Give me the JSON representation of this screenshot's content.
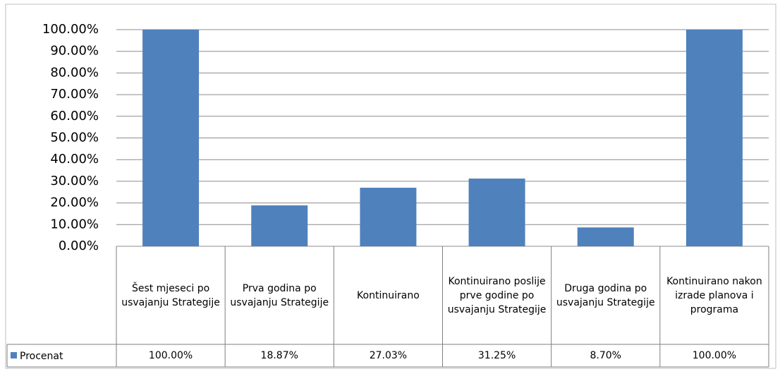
{
  "chart_data": {
    "type": "bar",
    "categories": [
      "Šest mjeseci po usvajanju Strategije",
      "Prva godina po usvajanju Strategije",
      "Kontinuirano",
      "Kontinuirano poslije prve godine po usvajanju Strategije",
      "Druga godina po usvajanju Strategije",
      "Kontinuirano nakon izrade planova i programa"
    ],
    "series": [
      {
        "name": "Procenat",
        "color": "#4f81bd",
        "values": [
          100,
          18.87,
          27.03,
          31.25,
          8.7,
          100
        ],
        "value_labels": [
          "100.00%",
          "18.87%",
          "27.03%",
          "31.25%",
          "8.70%",
          "100.00%"
        ]
      }
    ],
    "ylim": [
      0,
      100
    ],
    "yticks": [
      {
        "value": 0,
        "label": "0.00%"
      },
      {
        "value": 10,
        "label": "10.00%"
      },
      {
        "value": 20,
        "label": "20.00%"
      },
      {
        "value": 30,
        "label": "30.00%"
      },
      {
        "value": 40,
        "label": "40.00%"
      },
      {
        "value": 50,
        "label": "50.00%"
      },
      {
        "value": 60,
        "label": "60.00%"
      },
      {
        "value": 70,
        "label": "70.00%"
      },
      {
        "value": 80,
        "label": "80.00%"
      },
      {
        "value": 90,
        "label": "90.00%"
      },
      {
        "value": 100,
        "label": "100.00%"
      }
    ],
    "grid": true
  }
}
